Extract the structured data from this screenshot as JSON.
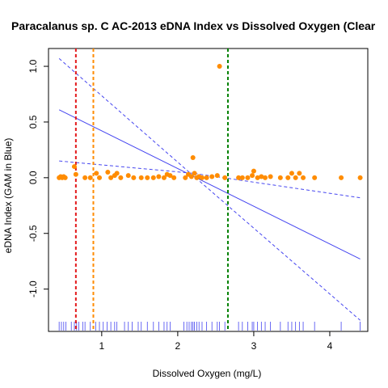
{
  "chart_data": {
    "type": "scatter",
    "title": "Paracalanus sp. C AC-2013 eDNA Index vs Dissolved Oxygen (Clear",
    "xlabel": "Dissolved Oxygen (mg/L)",
    "ylabel": "eDNA Index (GAM in Blue)",
    "xlim": [
      0.3,
      4.5
    ],
    "ylim": [
      -1.38,
      1.16
    ],
    "x_ticks": [
      1,
      2,
      3,
      4
    ],
    "x_tick_labels": [
      "1",
      "2",
      "3",
      "4"
    ],
    "y_ticks": [
      -1.0,
      -0.5,
      0.0,
      0.5,
      1.0
    ],
    "y_tick_labels": [
      "-1.0",
      "-0.5",
      "0.0",
      "0.5",
      "1.0"
    ],
    "grid": false,
    "legend": "none",
    "colors": {
      "points": "#ff8c00",
      "fit": "#4646f0",
      "rug": "#4646f0",
      "vline_red": "#e31a1c",
      "vline_orange": "#ff8c00",
      "vline_green": "#008000"
    },
    "points": [
      {
        "x": 0.44,
        "y": 0.0
      },
      {
        "x": 0.46,
        "y": 0.01
      },
      {
        "x": 0.48,
        "y": 0.0
      },
      {
        "x": 0.5,
        "y": 0.01
      },
      {
        "x": 0.52,
        "y": 0.0
      },
      {
        "x": 0.64,
        "y": 0.1
      },
      {
        "x": 0.66,
        "y": 0.03
      },
      {
        "x": 0.78,
        "y": 0.0
      },
      {
        "x": 0.85,
        "y": 0.0
      },
      {
        "x": 0.93,
        "y": 0.04
      },
      {
        "x": 0.97,
        "y": 0.0
      },
      {
        "x": 1.08,
        "y": 0.05
      },
      {
        "x": 1.12,
        "y": 0.0
      },
      {
        "x": 1.17,
        "y": 0.02
      },
      {
        "x": 1.2,
        "y": 0.04
      },
      {
        "x": 1.25,
        "y": 0.0
      },
      {
        "x": 1.35,
        "y": 0.02
      },
      {
        "x": 1.42,
        "y": 0.0
      },
      {
        "x": 1.52,
        "y": 0.0
      },
      {
        "x": 1.6,
        "y": 0.0
      },
      {
        "x": 1.68,
        "y": 0.0
      },
      {
        "x": 1.75,
        "y": 0.01
      },
      {
        "x": 1.82,
        "y": 0.0
      },
      {
        "x": 1.86,
        "y": 0.03
      },
      {
        "x": 1.9,
        "y": 0.02
      },
      {
        "x": 1.95,
        "y": 0.0
      },
      {
        "x": 2.1,
        "y": 0.0
      },
      {
        "x": 2.14,
        "y": 0.03
      },
      {
        "x": 2.18,
        "y": 0.01
      },
      {
        "x": 2.2,
        "y": 0.18
      },
      {
        "x": 2.22,
        "y": 0.04
      },
      {
        "x": 2.25,
        "y": 0.0
      },
      {
        "x": 2.28,
        "y": 0.01
      },
      {
        "x": 2.32,
        "y": 0.0
      },
      {
        "x": 2.38,
        "y": 0.0
      },
      {
        "x": 2.45,
        "y": 0.01
      },
      {
        "x": 2.52,
        "y": 0.02
      },
      {
        "x": 2.55,
        "y": 1.0
      },
      {
        "x": 2.62,
        "y": 0.0
      },
      {
        "x": 2.8,
        "y": 0.0
      },
      {
        "x": 2.85,
        "y": 0.0
      },
      {
        "x": 2.92,
        "y": 0.0
      },
      {
        "x": 2.98,
        "y": 0.02
      },
      {
        "x": 3.0,
        "y": 0.06
      },
      {
        "x": 3.05,
        "y": 0.0
      },
      {
        "x": 3.1,
        "y": 0.01
      },
      {
        "x": 3.15,
        "y": 0.0
      },
      {
        "x": 3.22,
        "y": 0.01
      },
      {
        "x": 3.35,
        "y": 0.0
      },
      {
        "x": 3.45,
        "y": 0.0
      },
      {
        "x": 3.5,
        "y": 0.04
      },
      {
        "x": 3.55,
        "y": 0.0
      },
      {
        "x": 3.6,
        "y": 0.04
      },
      {
        "x": 3.65,
        "y": 0.0
      },
      {
        "x": 3.8,
        "y": 0.0
      },
      {
        "x": 4.15,
        "y": 0.0
      },
      {
        "x": 4.4,
        "y": 0.0
      }
    ],
    "fit_line": {
      "x": [
        0.44,
        4.4
      ],
      "y": [
        0.61,
        -0.73
      ]
    },
    "ci_upper": {
      "x": [
        0.44,
        2.2,
        4.4
      ],
      "y": [
        0.15,
        0.04,
        -0.18
      ]
    },
    "ci_lower": {
      "x": [
        0.44,
        2.2,
        4.4
      ],
      "y": [
        1.07,
        0.02,
        -1.28
      ]
    },
    "vlines": [
      {
        "x": 0.66,
        "color": "red"
      },
      {
        "x": 0.89,
        "color": "orange"
      },
      {
        "x": 2.66,
        "color": "green"
      }
    ],
    "rug_x": [
      0.44,
      0.47,
      0.5,
      0.53,
      0.6,
      0.64,
      0.67,
      0.7,
      0.75,
      0.78,
      0.85,
      0.92,
      0.97,
      1.02,
      1.07,
      1.12,
      1.17,
      1.2,
      1.3,
      1.35,
      1.4,
      1.48,
      1.52,
      1.6,
      1.68,
      1.75,
      1.82,
      1.86,
      1.9,
      2.08,
      2.12,
      2.15,
      2.18,
      2.2,
      2.22,
      2.25,
      2.28,
      2.32,
      2.38,
      2.45,
      2.52,
      2.55,
      2.62,
      2.8,
      2.85,
      2.92,
      2.98,
      3.0,
      3.05,
      3.1,
      3.15,
      3.22,
      3.35,
      3.45,
      3.5,
      3.55,
      3.6,
      3.65,
      3.8,
      4.15,
      4.4
    ]
  }
}
